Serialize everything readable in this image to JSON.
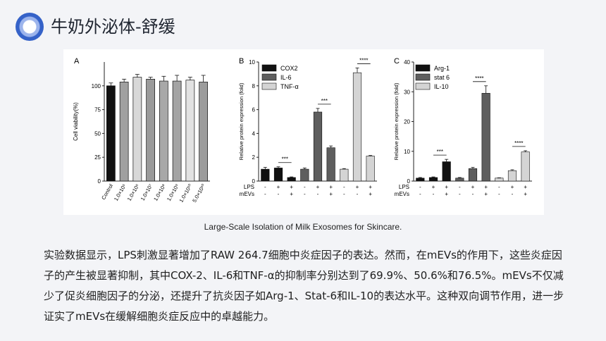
{
  "header": {
    "title": "牛奶外泌体-舒缓"
  },
  "caption": "Large-Scale Isolation of Milk Exosomes for Skincare.",
  "paragraph": "实验数据显示，LPS刺激显著增加了RAW 264.7细胞中炎症因子的表达。然而，在mEVs的作用下，这些炎症因子的产生被显著抑制，其中COX-2、IL-6和TNF-α的抑制率分别达到了69.9%、50.6%和76.5%。mEVs不仅减少了促炎细胞因子的分泌，还提升了抗炎因子如Arg-1、Stat-6和IL-10的表达水平。这种双向调节作用，进一步证实了mEVs在缓解细胞炎症反应中的卓越能力。",
  "chart_data": [
    {
      "panel": "A",
      "type": "bar",
      "ylabel": "Cell viability(%)",
      "ylim": [
        0,
        125
      ],
      "yticks": [
        0,
        25,
        50,
        75,
        100
      ],
      "categories": [
        "Control",
        "1.0×10⁵",
        "1.0×10⁶",
        "1.0×10⁷",
        "1.0×10⁸",
        "1.0×10⁹",
        "1.0×10¹⁰",
        "5.0×10¹⁰"
      ],
      "values": [
        100,
        104,
        109,
        107,
        105,
        105,
        106,
        104
      ],
      "errors": [
        3,
        3,
        3,
        2,
        5,
        6,
        3,
        7
      ],
      "colors": [
        "#111111",
        "#a0a0a0",
        "#d8d8d8",
        "#9a9a9a",
        "#a8a8a8",
        "#a4a4a4",
        "#e2e2e2",
        "#9c9c9c"
      ]
    },
    {
      "panel": "B",
      "type": "bar",
      "ylabel": "Relative protein expression (fold)",
      "ylim": [
        0,
        10
      ],
      "yticks": [
        0,
        2,
        4,
        6,
        8,
        10
      ],
      "row_labels": [
        "LPS",
        "mEVs"
      ],
      "series": [
        {
          "name": "COX2",
          "color": "#111111",
          "values": [
            1.0,
            1.1,
            0.3
          ],
          "errors": [
            0.15,
            0.1,
            0.05
          ]
        },
        {
          "name": "IL-6",
          "color": "#5e5e5e",
          "values": [
            1.0,
            5.8,
            2.8
          ],
          "errors": [
            0.1,
            0.3,
            0.15
          ]
        },
        {
          "name": "TNF-α",
          "color": "#d4d4d4",
          "values": [
            1.0,
            9.1,
            2.1
          ],
          "errors": [
            0.05,
            0.4,
            0.05
          ]
        }
      ],
      "lps": [
        "-",
        "+",
        "+"
      ],
      "mevs": [
        "-",
        "-",
        "+"
      ],
      "significance": [
        "***",
        "***",
        "****"
      ]
    },
    {
      "panel": "C",
      "type": "bar",
      "ylabel": "Relative protein expression (fold)",
      "ylim": [
        0,
        40
      ],
      "yticks": [
        0,
        10,
        20,
        30,
        40
      ],
      "row_labels": [
        "LPS",
        "mEVs"
      ],
      "series": [
        {
          "name": "Arg-1",
          "color": "#111111",
          "values": [
            1.0,
            1.2,
            6.5
          ],
          "errors": [
            0.2,
            0.2,
            0.8
          ]
        },
        {
          "name": "stat 6",
          "color": "#5e5e5e",
          "values": [
            1.0,
            4.2,
            29.5
          ],
          "errors": [
            0.2,
            0.4,
            2.5
          ]
        },
        {
          "name": "IL-10",
          "color": "#d4d4d4",
          "values": [
            1.0,
            3.5,
            9.8
          ],
          "errors": [
            0.1,
            0.3,
            0.4
          ]
        }
      ],
      "lps": [
        "-",
        "+",
        "+"
      ],
      "mevs": [
        "-",
        "-",
        "+"
      ],
      "significance": [
        "***",
        "****",
        "****"
      ]
    }
  ]
}
